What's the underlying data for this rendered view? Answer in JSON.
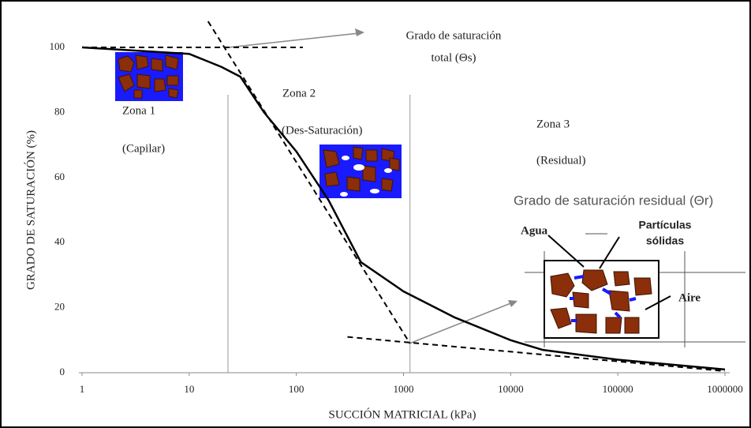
{
  "chart_data": {
    "type": "line",
    "x_label": "SUCCIÓN MATRICIAL (kPa)",
    "y_label": "GRADO DE SATURACIÓN (%)",
    "log_x": true,
    "xlim": [
      1,
      1000000
    ],
    "xticks": [
      1,
      10,
      100,
      1000,
      10000,
      100000,
      1000000
    ],
    "ylim": [
      0,
      100
    ],
    "yticks": [
      0,
      20,
      40,
      60,
      80,
      100
    ],
    "series": [
      {
        "color": "#000000",
        "x": [
          1,
          10,
          20,
          30,
          50,
          100,
          200,
          400,
          1000,
          3000,
          10000,
          20000,
          100000,
          1000000
        ],
        "values": [
          100,
          98,
          94,
          91,
          80,
          68,
          53,
          34,
          25,
          17,
          10,
          7,
          4,
          1
        ]
      }
    ],
    "dashed_lines": [
      {
        "x": [
          1,
          115
        ],
        "y": [
          100,
          100
        ]
      },
      {
        "x": [
          15,
          1150
        ],
        "y": [
          108,
          9
        ]
      },
      {
        "x": [
          300,
          1000000
        ],
        "y": [
          11,
          0.5
        ]
      }
    ],
    "vertical_lines": [
      23,
      1150
    ],
    "annotations": [
      "Grado de saturación",
      "total (Θs)",
      "Zona 1",
      "(Capilar)",
      "Zona 2",
      "(Des-Saturación)",
      "Zona 3",
      "(Residual)",
      "Grado de saturación residual (Θr)",
      "Agua",
      "Partículas",
      "sólidas",
      "Aire"
    ]
  }
}
